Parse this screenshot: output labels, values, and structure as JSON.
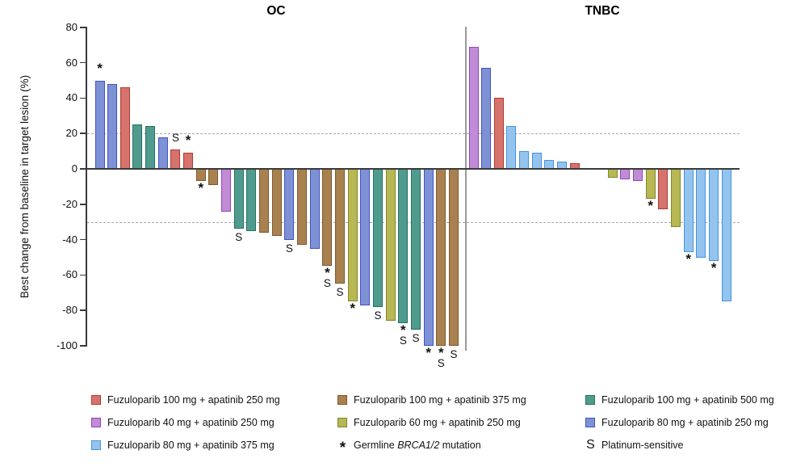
{
  "chart_data": {
    "type": "bar",
    "variant": "waterfall",
    "title": "",
    "xlabel": "",
    "ylabel": "Best change from baseline in target lesion (%)",
    "ylim": [
      -100,
      80
    ],
    "yticks": [
      80,
      60,
      40,
      20,
      0,
      -20,
      -40,
      -60,
      -80,
      -100
    ],
    "reference_lines": [
      20,
      -30
    ],
    "grid": "dashed horizontal reference lines at +20 and -30",
    "legend_position": "bottom",
    "marker_meaning": {
      "*": "Germline BRCA1/2 mutation",
      "S": "Platinum-sensitive"
    },
    "colors": {
      "red": {
        "fill": "#d5736c",
        "stroke": "#b13a34"
      },
      "orchid": {
        "fill": "#c18bd5",
        "stroke": "#9544c0"
      },
      "sky": {
        "fill": "#93c4ee",
        "stroke": "#4792e0"
      },
      "brown": {
        "fill": "#a8814f",
        "stroke": "#7b5a30"
      },
      "yellow": {
        "fill": "#b7b754",
        "stroke": "#85852d"
      },
      "teal": {
        "fill": "#4f9c8e",
        "stroke": "#26705f"
      },
      "slate": {
        "fill": "#7e91d5",
        "stroke": "#3f53c6"
      }
    },
    "groups": [
      {
        "label": "OC",
        "bars": [
          {
            "value": 50,
            "color": "slate",
            "marker": "*"
          },
          {
            "value": 48,
            "color": "slate"
          },
          {
            "value": 46,
            "color": "red"
          },
          {
            "value": 25,
            "color": "teal"
          },
          {
            "value": 24,
            "color": "teal"
          },
          {
            "value": 18,
            "color": "slate"
          },
          {
            "value": 11,
            "color": "red",
            "marker": "S"
          },
          {
            "value": 9,
            "color": "red",
            "marker": "*"
          },
          {
            "value": -7,
            "color": "brown",
            "marker": "*"
          },
          {
            "value": -9,
            "color": "brown"
          },
          {
            "value": -24,
            "color": "orchid"
          },
          {
            "value": -34,
            "color": "teal",
            "marker": "S"
          },
          {
            "value": -35,
            "color": "teal"
          },
          {
            "value": -36,
            "color": "brown"
          },
          {
            "value": -38,
            "color": "brown"
          },
          {
            "value": -40,
            "color": "slate",
            "marker": "S"
          },
          {
            "value": -43,
            "color": "brown"
          },
          {
            "value": -45,
            "color": "slate"
          },
          {
            "value": -55,
            "color": "brown",
            "marker": "*S"
          },
          {
            "value": -65,
            "color": "brown",
            "marker": "S"
          },
          {
            "value": -75,
            "color": "yellow",
            "marker": "*"
          },
          {
            "value": -77,
            "color": "slate"
          },
          {
            "value": -78,
            "color": "teal",
            "marker": "S"
          },
          {
            "value": -86,
            "color": "yellow"
          },
          {
            "value": -87,
            "color": "teal",
            "marker": "*S"
          },
          {
            "value": -91,
            "color": "teal",
            "marker": "S"
          },
          {
            "value": -100,
            "color": "slate",
            "marker": "*"
          },
          {
            "value": -100,
            "color": "brown",
            "marker": "*S"
          },
          {
            "value": -100,
            "color": "brown",
            "marker": "S"
          }
        ]
      },
      {
        "label": "TNBC",
        "gap_after_index": 8,
        "gap_slots": 2,
        "bars": [
          {
            "value": 69,
            "color": "orchid"
          },
          {
            "value": 57,
            "color": "slate"
          },
          {
            "value": 40,
            "color": "red"
          },
          {
            "value": 24,
            "color": "sky"
          },
          {
            "value": 10,
            "color": "sky"
          },
          {
            "value": 9,
            "color": "sky"
          },
          {
            "value": 5,
            "color": "sky"
          },
          {
            "value": 4,
            "color": "sky"
          },
          {
            "value": 3,
            "color": "red"
          },
          {
            "value": -5,
            "color": "yellow"
          },
          {
            "value": -6,
            "color": "orchid"
          },
          {
            "value": -7,
            "color": "orchid"
          },
          {
            "value": -17,
            "color": "yellow",
            "marker": "*"
          },
          {
            "value": -23,
            "color": "red"
          },
          {
            "value": -33,
            "color": "yellow"
          },
          {
            "value": -47,
            "color": "sky",
            "marker": "*"
          },
          {
            "value": -50,
            "color": "sky"
          },
          {
            "value": -52,
            "color": "sky",
            "marker": "*"
          },
          {
            "value": -75,
            "color": "sky"
          }
        ]
      }
    ]
  },
  "legend": {
    "columns": [
      [
        {
          "type": "swatch",
          "color": "red",
          "label": "Fuzuloparib 100 mg + apatinib 250 mg"
        },
        {
          "type": "swatch",
          "color": "orchid",
          "label": "Fuzuloparib 40 mg + apatinib 250 mg"
        },
        {
          "type": "swatch",
          "color": "sky",
          "label": "Fuzuloparib 80 mg + apatinib 375 mg"
        }
      ],
      [
        {
          "type": "swatch",
          "color": "brown",
          "label": "Fuzuloparib 100 mg + apatinib 375 mg"
        },
        {
          "type": "swatch",
          "color": "yellow",
          "label": "Fuzuloparib 60 mg + apatinib 250 mg"
        },
        {
          "type": "symbol",
          "symbol": "*",
          "label_parts": [
            {
              "text": "Germline ",
              "italic": false
            },
            {
              "text": "BRCA1/2",
              "italic": true
            },
            {
              "text": " mutation",
              "italic": false
            }
          ]
        }
      ],
      [
        {
          "type": "swatch",
          "color": "teal",
          "label": "Fuzuloparib 100 mg + apatinib 500 mg"
        },
        {
          "type": "swatch",
          "color": "slate",
          "label": "Fuzuloparib 80 mg + apatinib 250 mg"
        },
        {
          "type": "symbol",
          "symbol": "S",
          "label": "Platinum-sensitive"
        }
      ]
    ]
  }
}
